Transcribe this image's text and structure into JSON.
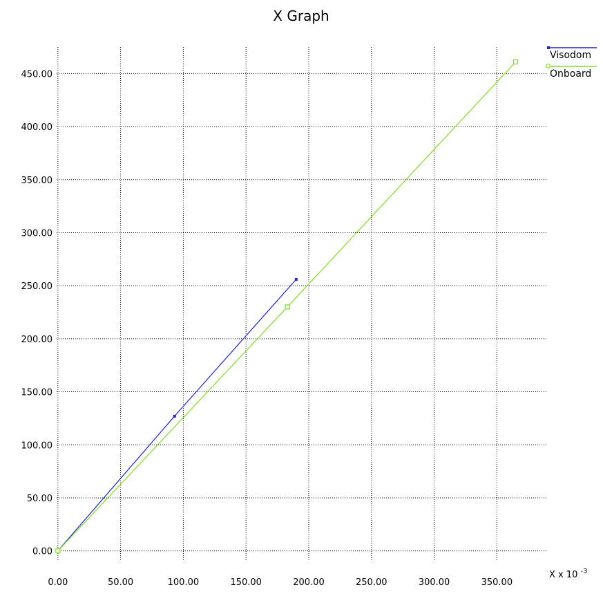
{
  "chart_data": {
    "type": "line",
    "title": "X Graph",
    "xlabel": "",
    "ylabel": "",
    "x_scale_note": {
      "prefix": "X x 10",
      "exponent": "-3"
    },
    "xlim": [
      -1,
      390
    ],
    "ylim": [
      -10,
      475
    ],
    "x_ticks": [
      0,
      50,
      100,
      150,
      200,
      250,
      300,
      350
    ],
    "x_tick_labels": [
      "0.00",
      "50.00",
      "100.00",
      "150.00",
      "200.00",
      "250.00",
      "300.00",
      "350.00"
    ],
    "y_ticks": [
      0,
      50,
      100,
      150,
      200,
      250,
      300,
      350,
      400,
      450
    ],
    "y_tick_labels": [
      "0.00",
      "50.00",
      "100.00",
      "150.00",
      "200.00",
      "250.00",
      "300.00",
      "350.00",
      "400.00",
      "450.00"
    ],
    "grid": true,
    "legend_position": "top-right",
    "series": [
      {
        "name": "Visodom",
        "color": "#1f1fe6",
        "marker": "filled-square",
        "points": [
          {
            "x": 0,
            "y": 0
          },
          {
            "x": 93,
            "y": 127
          },
          {
            "x": 190,
            "y": 256
          }
        ]
      },
      {
        "name": "Onboard",
        "color": "#7de01a",
        "marker": "hollow-square",
        "points": [
          {
            "x": 0,
            "y": 0
          },
          {
            "x": 183,
            "y": 230
          },
          {
            "x": 365,
            "y": 461
          }
        ]
      }
    ]
  }
}
